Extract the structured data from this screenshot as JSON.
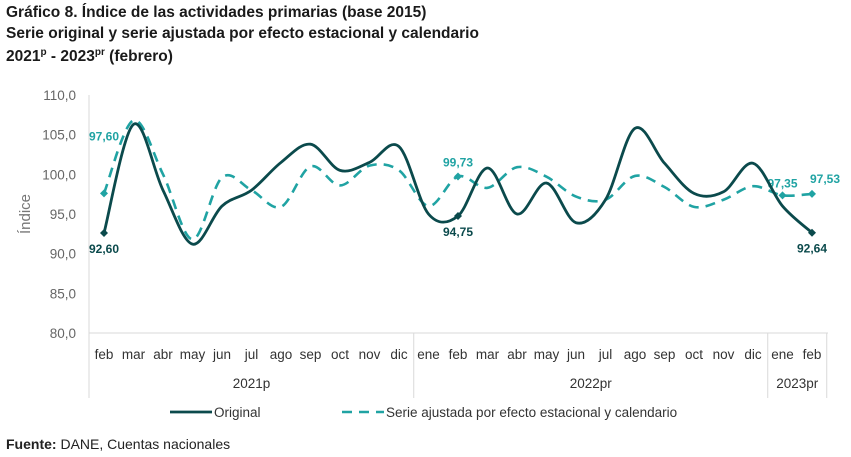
{
  "title_line1": "Gráfico 8. Índice de las actividades primarias (base 2015)",
  "title_line2": "Serie original y serie ajustada por efecto estacional y calendario",
  "title_line3_a": "2021",
  "title_line3_sup_a": "p",
  "title_line3_b": " - 2023",
  "title_line3_sup_b": "pr",
  "title_line3_c": " (febrero)",
  "source_label": "Fuente:",
  "source_text": " DANE, Cuentas nacionales",
  "colors": {
    "original": "#0b4a4c",
    "adjusted": "#20a3a3"
  },
  "chart_data": {
    "type": "line",
    "ylabel": "Índice",
    "ylim": [
      80,
      110
    ],
    "yticks": [
      "80,0",
      "85,0",
      "90,0",
      "95,0",
      "100,0",
      "105,0",
      "110,0"
    ],
    "categories": [
      "feb",
      "mar",
      "abr",
      "may",
      "jun",
      "jul",
      "ago",
      "sep",
      "oct",
      "nov",
      "dic",
      "ene",
      "feb",
      "mar",
      "abr",
      "may",
      "jun",
      "jul",
      "ago",
      "sep",
      "oct",
      "nov",
      "dic",
      "ene",
      "feb"
    ],
    "groups": [
      {
        "label": "2021p",
        "count": 11
      },
      {
        "label": "2022pr",
        "count": 12
      },
      {
        "label": "2023pr",
        "count": 2
      }
    ],
    "series": [
      {
        "name": "Original",
        "style": "solid",
        "values": [
          92.6,
          106.3,
          98.0,
          91.2,
          96.0,
          98.0,
          101.5,
          103.8,
          100.5,
          101.5,
          103.5,
          95.0,
          94.75,
          100.8,
          95.0,
          98.9,
          93.9,
          96.8,
          105.8,
          101.4,
          97.6,
          97.8,
          101.4,
          96.0,
          92.64
        ],
        "labels": [
          {
            "index": 0,
            "text": "92,60"
          },
          {
            "index": 12,
            "text": "94,75"
          },
          {
            "index": 24,
            "text": "92,64"
          }
        ]
      },
      {
        "name": "Serie ajustada por efecto estacional y calendario",
        "style": "dashed",
        "values": [
          97.6,
          106.8,
          100.0,
          91.8,
          99.6,
          98.0,
          95.9,
          101.0,
          98.6,
          101.1,
          100.5,
          96.0,
          99.73,
          98.3,
          100.9,
          99.7,
          97.2,
          96.8,
          99.8,
          98.4,
          95.9,
          96.8,
          98.5,
          97.35,
          97.53
        ],
        "labels": [
          {
            "index": 0,
            "text": "97,60"
          },
          {
            "index": 12,
            "text": "99,73"
          },
          {
            "index": 23,
            "text": "97,35"
          },
          {
            "index": 24,
            "text": "97,53"
          }
        ]
      }
    ],
    "legend_position": "bottom",
    "grid": false
  }
}
